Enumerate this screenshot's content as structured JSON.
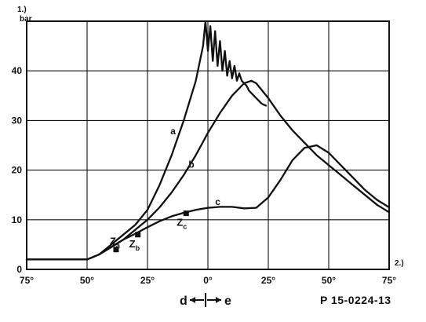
{
  "chart_data": {
    "type": "line",
    "title": "",
    "x_axis": {
      "unit_label": "2.)",
      "tick_labels": [
        "75°",
        "50°",
        "25°",
        "0°",
        "25°",
        "50°",
        "75°"
      ],
      "tick_positions_deg": [
        -75,
        -50,
        -25,
        0,
        25,
        50,
        75
      ]
    },
    "y_axis": {
      "unit_label_line1": "1.)",
      "unit_label_line2": "bar",
      "ticks": [
        0,
        10,
        20,
        30,
        40
      ],
      "tick_labels": [
        "0",
        "10",
        "20",
        "30",
        "40"
      ]
    },
    "xlim": [
      -75,
      75
    ],
    "ylim": [
      0,
      50
    ],
    "grid": true,
    "series": [
      {
        "name": "a",
        "x": [
          -75,
          -50,
          -45,
          -40,
          -35,
          -30,
          -25,
          -20,
          -15,
          -10,
          -5,
          -2,
          -1,
          0,
          1,
          2,
          3,
          4,
          5,
          6,
          7,
          8,
          9,
          10,
          11,
          12,
          13,
          14,
          15,
          16,
          17,
          18,
          19,
          20,
          21,
          22,
          23,
          24
        ],
        "y": [
          2,
          2,
          3,
          5,
          7,
          9,
          12,
          17,
          23,
          30,
          38,
          45,
          50,
          44,
          49,
          42,
          48,
          41,
          46,
          40,
          44,
          39,
          42,
          38.5,
          41,
          38,
          39.5,
          38,
          37.5,
          37,
          36,
          35.5,
          35,
          34.5,
          34,
          33.5,
          33.2,
          33
        ]
      },
      {
        "name": "b",
        "x": [
          -75,
          -50,
          -45,
          -40,
          -35,
          -30,
          -25,
          -20,
          -15,
          -10,
          -5,
          0,
          5,
          10,
          15,
          18,
          20,
          25,
          30,
          35,
          40,
          45,
          50,
          55,
          60,
          65,
          70,
          75
        ],
        "y": [
          2,
          2,
          3,
          4.5,
          6,
          8,
          10,
          12.5,
          15.5,
          19,
          23,
          27.5,
          31.5,
          35,
          37.5,
          38,
          37.5,
          34.5,
          31,
          28,
          25.5,
          23,
          21,
          19,
          17,
          15,
          13,
          11.5
        ]
      },
      {
        "name": "c",
        "x": [
          -75,
          -50,
          -45,
          -40,
          -35,
          -30,
          -25,
          -20,
          -15,
          -10,
          -5,
          0,
          5,
          10,
          15,
          20,
          25,
          30,
          35,
          40,
          45,
          50,
          55,
          60,
          65,
          70,
          75
        ],
        "y": [
          2,
          2,
          3,
          4.5,
          6,
          7.2,
          8.5,
          9.7,
          10.7,
          11.4,
          12,
          12.4,
          12.6,
          12.6,
          12.3,
          12.4,
          14.5,
          18,
          22,
          24.5,
          25,
          23.5,
          21,
          18.5,
          16,
          14,
          12.5
        ]
      }
    ],
    "points": [
      {
        "name": "Za",
        "subscript": "a",
        "x": -38,
        "y": 4
      },
      {
        "name": "Zb",
        "subscript": "b",
        "x": -29,
        "y": 7
      },
      {
        "name": "Zc",
        "subscript": "c",
        "x": -9,
        "y": 11.3
      }
    ],
    "bottom_legend": {
      "left_letter": "d",
      "right_letter": "e",
      "code": "P 15-0224-13"
    }
  }
}
